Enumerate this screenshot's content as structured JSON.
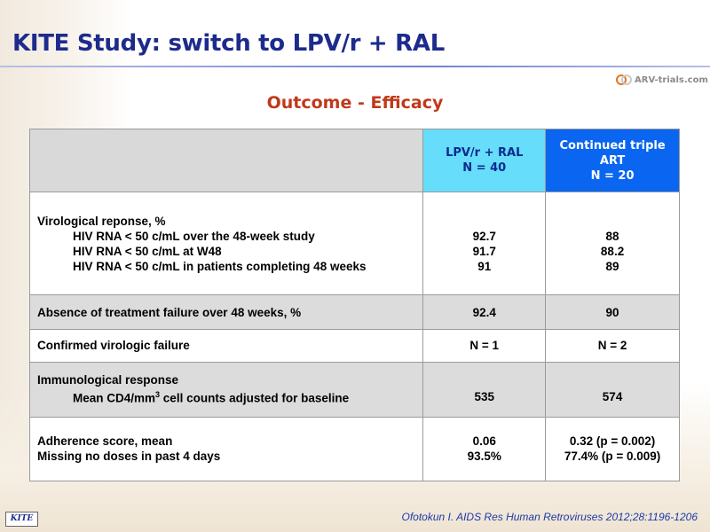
{
  "title": "KITE Study: switch to LPV/r + RAL",
  "logo_text": "ARV-trials.com",
  "subtitle": "Outcome - Efficacy",
  "table": {
    "header": {
      "col2_line1": "LPV/r + RAL",
      "col2_line2": "N = 40",
      "col3_line1": "Continued triple ART",
      "col3_line2": "N = 20"
    },
    "virological": {
      "label": "Virological reponse, %",
      "items": [
        {
          "label": "HIV RNA < 50 c/mL over the 48-week study",
          "lpv": "92.7",
          "triple": "88"
        },
        {
          "label": "HIV RNA < 50 c/mL at W48",
          "lpv": "91.7",
          "triple": "88.2"
        },
        {
          "label": "HIV RNA < 50 c/mL in patients completing 48 weeks",
          "lpv": "91",
          "triple": "89"
        }
      ]
    },
    "treatment_failure": {
      "label": "Absence of treatment failure over 48 weeks, %",
      "lpv": "92.4",
      "triple": "90"
    },
    "virologic_failure": {
      "label": "Confirmed virologic failure",
      "lpv": "N = 1",
      "triple": "N = 2"
    },
    "immunological": {
      "label": "Immunological response",
      "sub_pre": "Mean CD4/mm",
      "sub_sup": "3",
      "sub_post": " cell counts adjusted for baseline",
      "lpv": "535",
      "triple": "574"
    },
    "adherence": {
      "label1": "Adherence score, mean",
      "label2": "Missing no doses in past 4 days",
      "lpv1": "0.06",
      "lpv2": "93.5%",
      "triple1": "0.32 (p = 0.002)",
      "triple2": "77.4% (p = 0.009)"
    }
  },
  "source": "Ofotokun I. AIDS Res Human Retroviruses 2012;28:1196-1206",
  "badge": "KITE",
  "colors": {
    "title": "#1d2b8c",
    "subtitle": "#c0391b",
    "lpv_header": "#66ddfa",
    "triple_header": "#0a66f0"
  }
}
